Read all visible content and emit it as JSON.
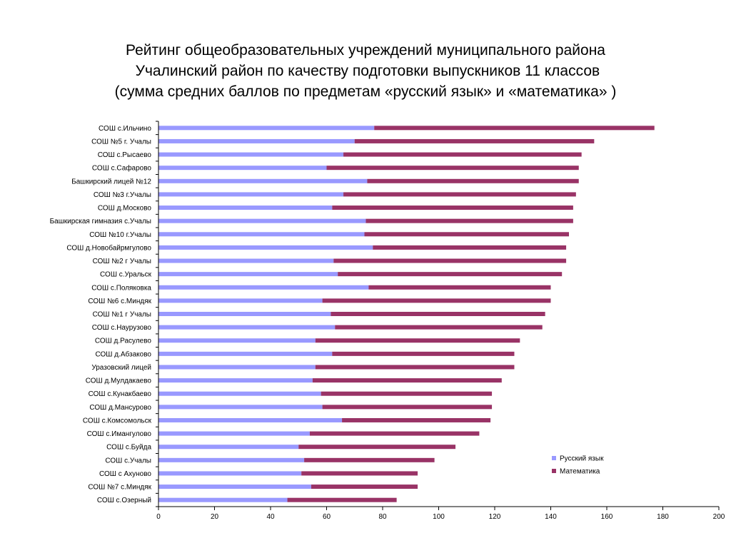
{
  "chart_data": {
    "type": "bar",
    "orientation": "horizontal",
    "stacked": true,
    "title": [
      "Рейтинг общеобразовательных учреждений муниципального района",
      " Учалинский район по качеству подготовки выпускников 11 классов",
      "(сумма средних баллов по предметам «русский язык» и «математика» )"
    ],
    "categories": [
      "СОШ с.Ильчино",
      "СОШ №5  г. Учалы",
      "СОШ с.Рысаево",
      "СОШ с.Сафарово",
      "Башкирский лицей №12",
      "СОШ №3 г.Учалы",
      "СОШ д.Москово",
      "Башкирская гимназия с.Учалы",
      "СОШ №10 г.Учалы",
      "СОШ д.Новобайрмгулово",
      "СОШ №2 г Учалы",
      "СОШ с.Уральск",
      "СОШ с.Поляковка",
      "СОШ №6  с.Миндяк",
      "СОШ №1 г Учалы",
      "СОШ с.Наурузово",
      "СОШ д.Расулево",
      "СОШ д.Абзаково",
      "Уразовский лицей",
      "СОШ д.Мулдакаево",
      "СОШ с.Кунакбаево",
      "СОШ д.Мансурово",
      "СОШ с.Комсомольск",
      "СОШ с.Имангулово",
      "СОШ с.Буйда",
      "СОШ с.Учалы",
      "СОШ  с Ахуново",
      "СОШ №7 с.Миндяк",
      "СОШ с.Озерный"
    ],
    "series": [
      {
        "name": "Русский язык",
        "color": "#9999ff",
        "values": [
          77,
          70,
          66,
          60,
          74.5,
          66,
          62,
          74,
          73.5,
          76.5,
          62.5,
          64,
          75,
          58.5,
          61.5,
          63,
          56,
          62,
          56,
          55,
          58,
          58.5,
          65.5,
          54,
          50,
          52,
          51,
          54.5,
          46
        ]
      },
      {
        "name": "Математика",
        "color": "#993366",
        "values": [
          100,
          85.5,
          85,
          90,
          75.5,
          83,
          86,
          74,
          73,
          69,
          83,
          80,
          65,
          81.5,
          76.5,
          74,
          73,
          65,
          71,
          67.5,
          61,
          60.5,
          53,
          60.5,
          56,
          46.5,
          41.5,
          38,
          39
        ]
      }
    ],
    "xlim": [
      0,
      200
    ],
    "xticks": [
      "0",
      "20",
      "40",
      "60",
      "80",
      "100",
      "120",
      "140",
      "160",
      "180",
      "200"
    ],
    "grid": false,
    "legend_position": "right"
  }
}
